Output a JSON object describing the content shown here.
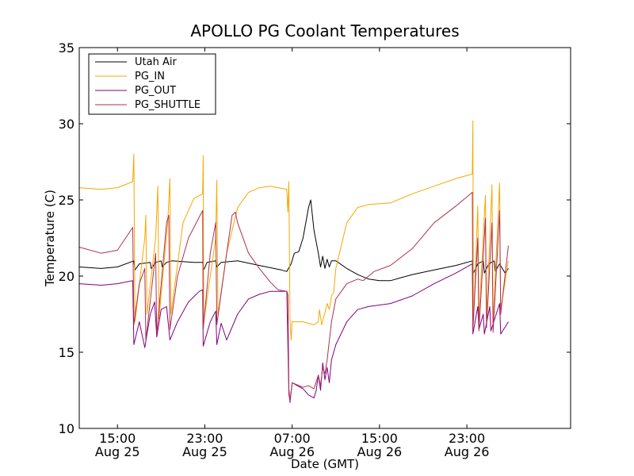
{
  "chart_data": {
    "type": "line",
    "title": "APOLLO PG Coolant Temperatures",
    "xlabel": "Date (GMT)",
    "ylabel": "Temperature (C)",
    "xlim": [
      11.5,
      56.5
    ],
    "ylim": [
      10,
      35
    ],
    "yticks": [
      "10",
      "15",
      "20",
      "25",
      "30",
      "35"
    ],
    "ytick_values": [
      10,
      15,
      20,
      25,
      30,
      35
    ],
    "xticks": [
      {
        "value": 15,
        "time": "15:00",
        "date": "Aug 25"
      },
      {
        "value": 23,
        "time": "23:00",
        "date": "Aug 25"
      },
      {
        "value": 31,
        "time": "07:00",
        "date": "Aug 26"
      },
      {
        "value": 39,
        "time": "15:00",
        "date": "Aug 26"
      },
      {
        "value": 47,
        "time": "23:00",
        "date": "Aug 26"
      }
    ],
    "legend_position": "top-left",
    "series": [
      {
        "name": "Utah Air",
        "color": "#000000",
        "points": [
          [
            11.5,
            20.6
          ],
          [
            13.5,
            20.5
          ],
          [
            15,
            20.6
          ],
          [
            16.5,
            21.0
          ],
          [
            16.6,
            20.4
          ],
          [
            17,
            20.8
          ],
          [
            18,
            20.9
          ],
          [
            18.1,
            20.5
          ],
          [
            18.5,
            20.9
          ],
          [
            19,
            21.0
          ],
          [
            19.1,
            20.6
          ],
          [
            19.5,
            20.9
          ],
          [
            20,
            21.0
          ],
          [
            22,
            20.9
          ],
          [
            22.8,
            20.9
          ],
          [
            22.9,
            20.4
          ],
          [
            23.2,
            20.9
          ],
          [
            24,
            21.0
          ],
          [
            24.1,
            20.6
          ],
          [
            24.5,
            20.9
          ],
          [
            26,
            21.0
          ],
          [
            28,
            20.7
          ],
          [
            30,
            20.4
          ],
          [
            30.5,
            20.3
          ],
          [
            30.9,
            20.8
          ],
          [
            31.2,
            21.5
          ],
          [
            31.6,
            21.6
          ],
          [
            32,
            22.5
          ],
          [
            32.5,
            24.5
          ],
          [
            32.7,
            25.0
          ],
          [
            33,
            23.0
          ],
          [
            33.4,
            21.5
          ],
          [
            33.6,
            20.6
          ],
          [
            33.8,
            21.3
          ],
          [
            34,
            20.5
          ],
          [
            34.2,
            21.1
          ],
          [
            34.4,
            20.6
          ],
          [
            34.6,
            21.0
          ],
          [
            35,
            21.0
          ],
          [
            36,
            20.5
          ],
          [
            37,
            20.1
          ],
          [
            38,
            19.8
          ],
          [
            39,
            19.7
          ],
          [
            40,
            19.7
          ],
          [
            41,
            19.9
          ],
          [
            42,
            20.1
          ],
          [
            44,
            20.4
          ],
          [
            46,
            20.7
          ],
          [
            47.5,
            21.0
          ],
          [
            47.6,
            20.2
          ],
          [
            48,
            20.8
          ],
          [
            48.5,
            21.0
          ],
          [
            48.6,
            20.2
          ],
          [
            49,
            20.8
          ],
          [
            49.5,
            21.0
          ],
          [
            49.6,
            20.3
          ],
          [
            50,
            20.8
          ],
          [
            50.5,
            20.2
          ],
          [
            50.8,
            20.5
          ]
        ]
      },
      {
        "name": "PG_IN",
        "color": "#f5a800",
        "points": [
          [
            11.5,
            25.8
          ],
          [
            13.5,
            25.7
          ],
          [
            15,
            25.8
          ],
          [
            16.4,
            26.2
          ],
          [
            16.5,
            28.0
          ],
          [
            16.6,
            17.0
          ],
          [
            17.5,
            22.5
          ],
          [
            17.6,
            24.0
          ],
          [
            17.7,
            17.5
          ],
          [
            18.5,
            22.5
          ],
          [
            18.7,
            25.9
          ],
          [
            18.8,
            17.2
          ],
          [
            19.6,
            23.5
          ],
          [
            19.8,
            26.4
          ],
          [
            19.9,
            17.5
          ],
          [
            21,
            23.5
          ],
          [
            22,
            25.1
          ],
          [
            22.8,
            25.4
          ],
          [
            22.85,
            27.9
          ],
          [
            22.9,
            17.0
          ],
          [
            24,
            22.5
          ],
          [
            24.1,
            26.3
          ],
          [
            24.2,
            17.5
          ],
          [
            25,
            21.5
          ],
          [
            26,
            24.5
          ],
          [
            27,
            25.5
          ],
          [
            28,
            25.8
          ],
          [
            29,
            25.9
          ],
          [
            30.5,
            25.7
          ],
          [
            30.6,
            24.2
          ],
          [
            30.7,
            26.2
          ],
          [
            30.8,
            17.3
          ],
          [
            30.9,
            15.8
          ],
          [
            31,
            17.0
          ],
          [
            32,
            17.0
          ],
          [
            33,
            16.8
          ],
          [
            33.4,
            17.0
          ],
          [
            33.5,
            17.8
          ],
          [
            33.7,
            16.8
          ],
          [
            34,
            17.6
          ],
          [
            34.2,
            18.2
          ],
          [
            34.4,
            17.8
          ],
          [
            34.6,
            18.7
          ],
          [
            34.8,
            18.9
          ],
          [
            35,
            20.5
          ],
          [
            36,
            23.5
          ],
          [
            37,
            24.5
          ],
          [
            38,
            24.7
          ],
          [
            40,
            24.8
          ],
          [
            42,
            25.4
          ],
          [
            44,
            25.9
          ],
          [
            46,
            26.4
          ],
          [
            47.5,
            26.7
          ],
          [
            47.55,
            30.2
          ],
          [
            47.6,
            17.0
          ],
          [
            48,
            24.6
          ],
          [
            48.1,
            17.2
          ],
          [
            48.7,
            25.3
          ],
          [
            48.8,
            17.3
          ],
          [
            49.3,
            26.0
          ],
          [
            49.4,
            17.0
          ],
          [
            50,
            26.1
          ],
          [
            50.1,
            17.8
          ],
          [
            50.8,
            21.0
          ]
        ]
      },
      {
        "name": "PG_OUT",
        "color": "#800080",
        "points": [
          [
            11.5,
            19.5
          ],
          [
            13.5,
            19.4
          ],
          [
            15,
            19.5
          ],
          [
            16.4,
            19.7
          ],
          [
            16.5,
            15.5
          ],
          [
            17,
            17.0
          ],
          [
            17.5,
            15.3
          ],
          [
            18,
            17.5
          ],
          [
            18.4,
            18.3
          ],
          [
            18.6,
            16.0
          ],
          [
            19,
            17.8
          ],
          [
            19.5,
            18.0
          ],
          [
            19.8,
            15.8
          ],
          [
            20.5,
            17.0
          ],
          [
            21.5,
            18.3
          ],
          [
            22.5,
            19.0
          ],
          [
            22.8,
            19.1
          ],
          [
            22.85,
            15.4
          ],
          [
            23.5,
            17.0
          ],
          [
            24,
            17.7
          ],
          [
            24.1,
            15.5
          ],
          [
            24.5,
            16.9
          ],
          [
            25,
            15.8
          ],
          [
            26,
            17.5
          ],
          [
            27,
            18.5
          ],
          [
            28,
            18.8
          ],
          [
            29,
            19.0
          ],
          [
            30.5,
            19.0
          ],
          [
            30.6,
            18.8
          ],
          [
            30.7,
            12.6
          ],
          [
            30.8,
            11.7
          ],
          [
            31,
            13.0
          ],
          [
            32,
            12.6
          ],
          [
            32.5,
            12.2
          ],
          [
            33,
            12.0
          ],
          [
            33.2,
            12.5
          ],
          [
            33.4,
            13.5
          ],
          [
            33.6,
            12.5
          ],
          [
            33.8,
            14.3
          ],
          [
            34,
            13.2
          ],
          [
            34.2,
            14.0
          ],
          [
            34.4,
            13.0
          ],
          [
            34.6,
            14.5
          ],
          [
            35,
            15.5
          ],
          [
            36,
            17.0
          ],
          [
            37,
            17.8
          ],
          [
            38,
            18.0
          ],
          [
            40,
            18.2
          ],
          [
            42,
            18.7
          ],
          [
            44,
            19.5
          ],
          [
            46,
            20.2
          ],
          [
            47.5,
            20.8
          ],
          [
            47.55,
            16.2
          ],
          [
            48,
            18.0
          ],
          [
            48.1,
            16.5
          ],
          [
            48.5,
            17.5
          ],
          [
            48.6,
            16.2
          ],
          [
            49.1,
            18.0
          ],
          [
            49.2,
            16.4
          ],
          [
            50,
            18.2
          ],
          [
            50.1,
            16.2
          ],
          [
            50.8,
            17.0
          ]
        ]
      },
      {
        "name": "PG_SHUTTLE",
        "color": "#b03050",
        "points": [
          [
            11.5,
            21.9
          ],
          [
            13.5,
            21.5
          ],
          [
            15,
            21.7
          ],
          [
            16.4,
            23.2
          ],
          [
            16.5,
            16.8
          ],
          [
            17,
            19.5
          ],
          [
            17.5,
            20.5
          ],
          [
            17.6,
            15.8
          ],
          [
            18.5,
            21.5
          ],
          [
            18.6,
            16.2
          ],
          [
            19.5,
            23.5
          ],
          [
            19.7,
            24.0
          ],
          [
            19.8,
            16.5
          ],
          [
            20.5,
            20.0
          ],
          [
            21.5,
            22.5
          ],
          [
            22.8,
            24.3
          ],
          [
            22.85,
            16.5
          ],
          [
            23.5,
            21.5
          ],
          [
            24,
            23.5
          ],
          [
            24.1,
            16.8
          ],
          [
            25,
            21.5
          ],
          [
            25.5,
            24.0
          ],
          [
            25.8,
            24.2
          ],
          [
            26,
            23.5
          ],
          [
            27,
            21.5
          ],
          [
            28,
            20.5
          ],
          [
            29,
            19.6
          ],
          [
            29.7,
            19.1
          ],
          [
            30.5,
            19.0
          ],
          [
            30.7,
            12.2
          ],
          [
            30.8,
            11.8
          ],
          [
            31,
            13.0
          ],
          [
            32,
            12.7
          ],
          [
            32.5,
            12.8
          ],
          [
            33,
            12.6
          ],
          [
            33.4,
            13.5
          ],
          [
            33.6,
            12.8
          ],
          [
            33.8,
            14.0
          ],
          [
            34,
            13.6
          ],
          [
            34.2,
            14.5
          ],
          [
            34.6,
            17.0
          ],
          [
            35,
            18.5
          ],
          [
            36,
            19.5
          ],
          [
            37,
            19.8
          ],
          [
            37.5,
            19.7
          ],
          [
            38.5,
            20.3
          ],
          [
            40,
            20.7
          ],
          [
            42,
            21.8
          ],
          [
            44,
            23.5
          ],
          [
            46,
            24.6
          ],
          [
            47.5,
            25.5
          ],
          [
            47.55,
            16.5
          ],
          [
            48,
            22.5
          ],
          [
            48.1,
            16.4
          ],
          [
            48.7,
            23.8
          ],
          [
            48.8,
            16.6
          ],
          [
            49.3,
            23.5
          ],
          [
            49.4,
            16.3
          ],
          [
            50,
            24.3
          ],
          [
            50.1,
            17.5
          ],
          [
            50.8,
            22.0
          ]
        ]
      }
    ]
  }
}
